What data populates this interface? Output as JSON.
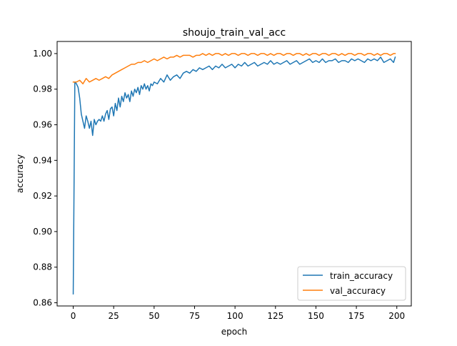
{
  "chart_data": {
    "type": "line",
    "title": "shoujo_train_val_acc",
    "xlabel": "epoch",
    "ylabel": "accuracy",
    "xlim": [
      -9.95,
      208.95
    ],
    "ylim": [
      0.8582,
      1.0068
    ],
    "xticks": [
      0,
      25,
      50,
      75,
      100,
      125,
      150,
      175,
      200
    ],
    "xtick_labels": [
      "0",
      "25",
      "50",
      "75",
      "100",
      "125",
      "150",
      "175",
      "200"
    ],
    "yticks": [
      0.86,
      0.88,
      0.9,
      0.92,
      0.94,
      0.96,
      0.98,
      1.0
    ],
    "ytick_labels": [
      "0.86",
      "0.88",
      "0.90",
      "0.92",
      "0.94",
      "0.96",
      "0.98",
      "1.00"
    ],
    "grid": false,
    "legend_position": "lower right",
    "series": [
      {
        "name": "train_accuracy",
        "color": "#1f77b4",
        "x": [
          0,
          1,
          2,
          3,
          4,
          5,
          6,
          7,
          8,
          9,
          10,
          11,
          12,
          13,
          14,
          15,
          16,
          17,
          18,
          19,
          20,
          21,
          22,
          23,
          24,
          25,
          26,
          27,
          28,
          29,
          30,
          31,
          32,
          33,
          34,
          35,
          36,
          37,
          38,
          39,
          40,
          41,
          42,
          43,
          44,
          45,
          46,
          47,
          48,
          49,
          50,
          52,
          54,
          56,
          58,
          60,
          62,
          64,
          66,
          68,
          70,
          72,
          74,
          76,
          78,
          80,
          82,
          84,
          86,
          88,
          90,
          92,
          94,
          96,
          98,
          100,
          102,
          104,
          106,
          108,
          110,
          112,
          114,
          116,
          118,
          120,
          122,
          124,
          126,
          128,
          130,
          132,
          134,
          136,
          138,
          140,
          142,
          144,
          146,
          148,
          150,
          152,
          154,
          156,
          158,
          160,
          162,
          164,
          166,
          168,
          170,
          172,
          174,
          176,
          178,
          180,
          182,
          184,
          186,
          188,
          190,
          192,
          194,
          196,
          198,
          199
        ],
        "values": [
          0.865,
          0.984,
          0.983,
          0.981,
          0.975,
          0.966,
          0.962,
          0.958,
          0.965,
          0.962,
          0.958,
          0.962,
          0.954,
          0.963,
          0.96,
          0.962,
          0.963,
          0.962,
          0.965,
          0.962,
          0.966,
          0.968,
          0.963,
          0.969,
          0.97,
          0.965,
          0.972,
          0.968,
          0.975,
          0.97,
          0.976,
          0.973,
          0.978,
          0.975,
          0.977,
          0.973,
          0.979,
          0.976,
          0.98,
          0.978,
          0.981,
          0.977,
          0.982,
          0.98,
          0.983,
          0.98,
          0.982,
          0.979,
          0.983,
          0.982,
          0.984,
          0.983,
          0.986,
          0.984,
          0.988,
          0.985,
          0.987,
          0.988,
          0.986,
          0.989,
          0.99,
          0.989,
          0.991,
          0.99,
          0.992,
          0.991,
          0.992,
          0.993,
          0.991,
          0.993,
          0.992,
          0.994,
          0.992,
          0.993,
          0.994,
          0.992,
          0.994,
          0.993,
          0.995,
          0.993,
          0.994,
          0.995,
          0.993,
          0.994,
          0.995,
          0.994,
          0.996,
          0.994,
          0.995,
          0.994,
          0.995,
          0.996,
          0.994,
          0.995,
          0.996,
          0.994,
          0.995,
          0.996,
          0.997,
          0.995,
          0.996,
          0.995,
          0.997,
          0.995,
          0.996,
          0.996,
          0.997,
          0.995,
          0.996,
          0.996,
          0.995,
          0.997,
          0.996,
          0.997,
          0.996,
          0.995,
          0.997,
          0.996,
          0.997,
          0.996,
          0.998,
          0.995,
          0.996,
          0.997,
          0.995,
          0.998
        ]
      },
      {
        "name": "val_accuracy",
        "color": "#ff7f0e",
        "x": [
          0,
          2,
          4,
          6,
          8,
          10,
          12,
          14,
          16,
          18,
          20,
          22,
          24,
          26,
          28,
          30,
          32,
          34,
          36,
          38,
          40,
          42,
          44,
          46,
          48,
          50,
          52,
          54,
          56,
          58,
          60,
          62,
          64,
          66,
          68,
          70,
          72,
          74,
          76,
          78,
          80,
          82,
          84,
          86,
          88,
          90,
          92,
          94,
          96,
          98,
          100,
          102,
          104,
          106,
          108,
          110,
          112,
          114,
          116,
          118,
          120,
          122,
          124,
          126,
          128,
          130,
          132,
          134,
          136,
          138,
          140,
          142,
          144,
          146,
          148,
          150,
          152,
          154,
          156,
          158,
          160,
          162,
          164,
          166,
          168,
          170,
          172,
          174,
          176,
          178,
          180,
          182,
          184,
          186,
          188,
          190,
          192,
          194,
          196,
          198,
          199
        ],
        "values": [
          0.984,
          0.984,
          0.985,
          0.983,
          0.986,
          0.984,
          0.985,
          0.986,
          0.985,
          0.986,
          0.987,
          0.986,
          0.988,
          0.989,
          0.99,
          0.991,
          0.992,
          0.993,
          0.994,
          0.994,
          0.995,
          0.995,
          0.996,
          0.995,
          0.996,
          0.997,
          0.996,
          0.997,
          0.998,
          0.997,
          0.998,
          0.998,
          0.999,
          0.998,
          0.999,
          0.999,
          0.999,
          0.998,
          0.999,
          0.999,
          1.0,
          0.999,
          1.0,
          0.999,
          1.0,
          1.0,
          0.999,
          1.0,
          0.999,
          1.0,
          1.0,
          0.999,
          1.0,
          1.0,
          0.999,
          1.0,
          1.0,
          0.999,
          1.0,
          1.0,
          0.999,
          1.0,
          0.999,
          1.0,
          1.0,
          0.999,
          1.0,
          1.0,
          0.999,
          1.0,
          1.0,
          0.999,
          1.0,
          0.999,
          1.0,
          1.0,
          0.999,
          1.0,
          1.0,
          0.999,
          1.0,
          1.0,
          0.999,
          1.0,
          0.999,
          1.0,
          1.0,
          0.999,
          1.0,
          1.0,
          0.999,
          1.0,
          1.0,
          0.999,
          1.0,
          0.999,
          1.0,
          1.0,
          0.999,
          1.0,
          1.0
        ]
      }
    ]
  }
}
